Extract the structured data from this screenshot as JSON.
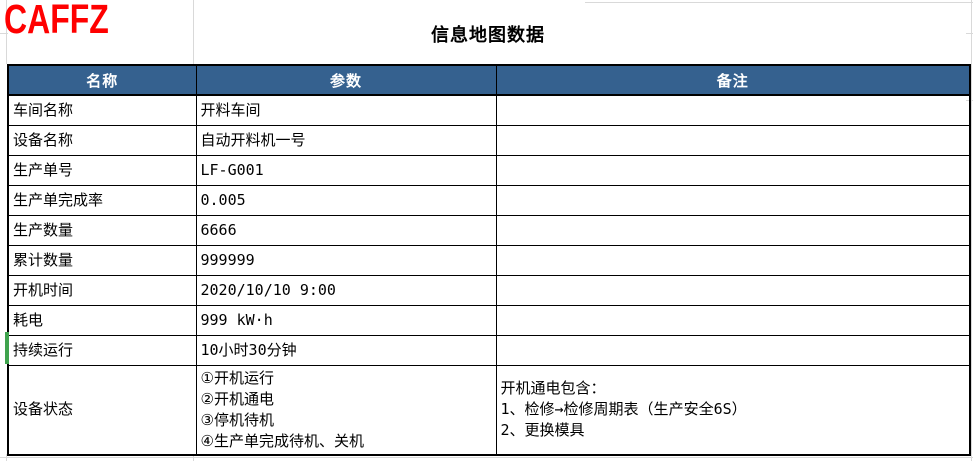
{
  "logo": "CAFFZ",
  "title": "信息地图数据",
  "table": {
    "headers": [
      "名称",
      "参数",
      "备注"
    ],
    "rows": [
      {
        "name": "车间名称",
        "param": "开料车间",
        "note": ""
      },
      {
        "name": "设备名称",
        "param": "自动开料机一号",
        "note": ""
      },
      {
        "name": "生产单号",
        "param": "LF-G001",
        "note": ""
      },
      {
        "name": "生产单完成率",
        "param": "0.005",
        "note": ""
      },
      {
        "name": "生产数量",
        "param": "6666",
        "note": ""
      },
      {
        "name": "累计数量",
        "param": "999999",
        "note": ""
      },
      {
        "name": "开机时间",
        "param": "2020/10/10 9:00",
        "note": ""
      },
      {
        "name": "耗电",
        "param": "999 kW·h",
        "note": ""
      },
      {
        "name": "持续运行",
        "param": "10小时30分钟",
        "note": ""
      },
      {
        "name": "设备状态",
        "param": "①开机运行\n②开机通电\n③停机待机\n④生产单完成待机、关机",
        "note": "开机通电包含：\n1、检修→检修周期表（生产安全6S）\n2、更换模具"
      }
    ]
  },
  "colors": {
    "header_bg": "#35618F",
    "header_text": "#FFFFFF",
    "logo_red": "#FF0000",
    "selection_green": "#3FA34D",
    "gridline": "#D9D9D9",
    "border": "#000000"
  }
}
